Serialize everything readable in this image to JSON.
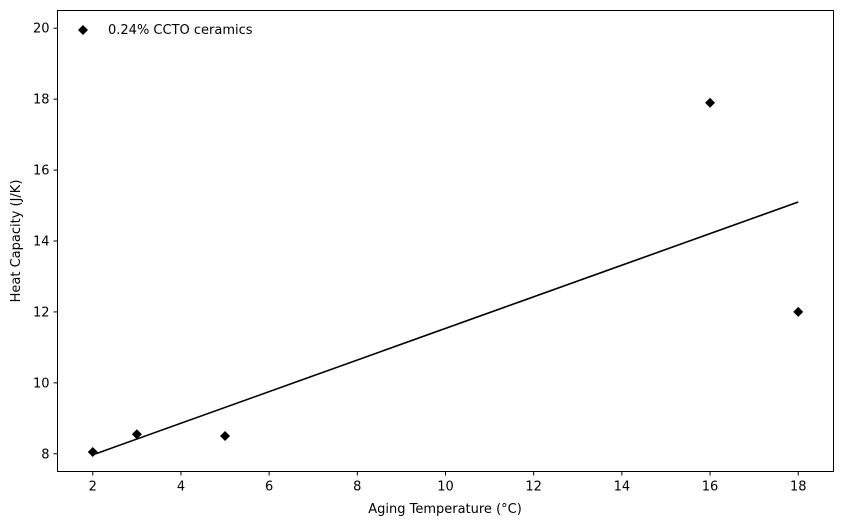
{
  "chart_data": {
    "type": "scatter",
    "xlabel": "Aging Temperature (°C)",
    "ylabel": "Heat Capacity (J/K)",
    "xlim": [
      1.2,
      18.8
    ],
    "ylim": [
      7.5,
      20.5
    ],
    "xticks": [
      2,
      4,
      6,
      8,
      10,
      12,
      14,
      16,
      18
    ],
    "yticks": [
      8,
      10,
      12,
      14,
      16,
      18,
      20
    ],
    "grid": false,
    "legend_position": "top-left",
    "series": [
      {
        "name": "0.24% CCTO ceramics",
        "kind": "scatter",
        "marker": "diamond",
        "color": "#000000",
        "points": [
          {
            "x": 2,
            "y": 8.05
          },
          {
            "x": 3,
            "y": 8.55
          },
          {
            "x": 5,
            "y": 8.5
          },
          {
            "x": 16,
            "y": 17.9
          },
          {
            "x": 18,
            "y": 12.0
          }
        ]
      },
      {
        "kind": "line",
        "color": "#000000",
        "points": [
          {
            "x": 2,
            "y": 7.97
          },
          {
            "x": 18,
            "y": 15.1
          }
        ]
      }
    ]
  }
}
